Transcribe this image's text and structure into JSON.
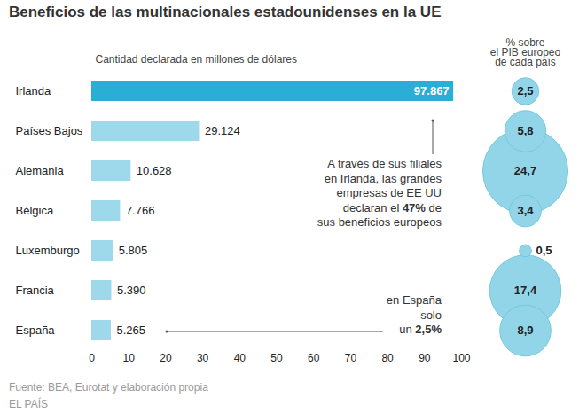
{
  "chart_data": {
    "type": "bar",
    "orientation": "horizontal",
    "title": "Beneficios de las multinacionales estadounidenses en la UE",
    "subtitle": "Cantidad declarada en millones de dólares",
    "categories": [
      "Irlanda",
      "Países Bajos",
      "Alemania",
      "Bélgica",
      "Luxemburgo",
      "Francia",
      "España"
    ],
    "values": [
      97.867,
      29.124,
      10.628,
      7.766,
      5.805,
      5.39,
      5.265
    ],
    "value_labels": [
      "97.867",
      "29.124",
      "10.628",
      "7.766",
      "5.805",
      "5.390",
      "5.265"
    ],
    "colors": [
      "#2aaed6",
      "#9dd9ea",
      "#9dd9ea",
      "#9dd9ea",
      "#9dd9ea",
      "#9dd9ea",
      "#9dd9ea"
    ],
    "data_labels": true,
    "grid": false,
    "xlim": [
      0,
      100
    ],
    "xticks": [
      0,
      10,
      20,
      30,
      40,
      50,
      60,
      70,
      80,
      90,
      100
    ],
    "bubbles": {
      "title": "% sobre\nel PIB europeo\nde cada país",
      "values": [
        2.5,
        5.8,
        24.7,
        3.4,
        0.5,
        17.4,
        8.9
      ],
      "value_labels": [
        "2,5",
        "5,8",
        "24,7",
        "3,4",
        "0,5",
        "17,4",
        "8,9"
      ],
      "color": "#93d5e8"
    },
    "annotations": [
      {
        "text": [
          "A través de sus filiales",
          "en Irlanda, las grandes",
          "empresas de EE UU",
          "declaran el 47% de",
          "sus beneficios europeos"
        ]
      },
      {
        "text": [
          "en España",
          "solo",
          "un 2,5%"
        ]
      }
    ],
    "source": "Fuente: BEA, Eurotat y elaboración propia",
    "credit": "EL PAÍS"
  }
}
